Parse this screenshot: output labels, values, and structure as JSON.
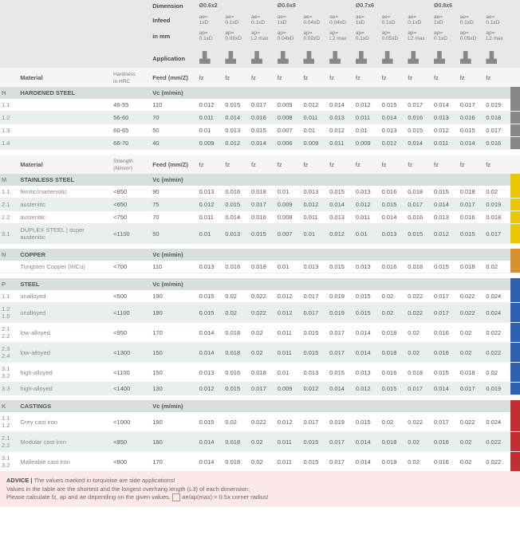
{
  "header": {
    "dim": "Dimension",
    "infeed": "Infeed",
    "inmm": "in mm",
    "app": "Application",
    "sizes": [
      "Ø0.6x2",
      "Ø0.6x8",
      "Ø0.7x6",
      "Ø0.8x6"
    ],
    "ae": [
      "ae=\n1xD",
      "ae=\n0.1xD",
      "ae=\n0.1xD",
      "ae=\n1xD",
      "ae=\n0.04xD",
      "ae=\n0.04xD",
      "ae=\n1xD",
      "ae=\n0.1xD",
      "ae=\n0.1xD",
      "ae=\n1xD",
      "ae=\n0.1xD",
      "ae=\n0.1xD"
    ],
    "ap": [
      "",
      "ap=\n0.05xD",
      "ap=\nL2 max",
      "",
      "ap=\n0.02xD",
      "ap=\nL2 max",
      "",
      "ap=\n0.05xD",
      "ap=\nL2 max",
      "",
      "ap=\n0.05xD",
      "ap=\nL2 max"
    ],
    "ap2": [
      "ap=\n0.1xD",
      "",
      "",
      "ap=\n0.04xD",
      "",
      "",
      "ap=\n0.1xD",
      "",
      "",
      "ap=\n0.1xD",
      "",
      ""
    ],
    "mat": "Material",
    "hard": "Hardness\nin HRC",
    "str": "Strength\n(N/mm²)",
    "feed": "Feed (mm/Z)",
    "fz": "fz",
    "vc": "Vc (m/min)"
  },
  "sections": [
    {
      "key": "H",
      "stripe": "s-h",
      "title": "HARDENED STEEL",
      "hcol": "hard",
      "rows": [
        {
          "c": "1.1",
          "m": "",
          "h": "46-55",
          "vc": "110",
          "v": [
            "0.012",
            "0.015",
            "0.017",
            "0.009",
            "0.012",
            "0.014",
            "0.012",
            "0.015",
            "0.017",
            "0.014",
            "0.017",
            "0.019"
          ]
        },
        {
          "c": "1.2",
          "m": "",
          "h": "56-60",
          "vc": "70",
          "v": [
            "0.011",
            "0.014",
            "0.016",
            "0.008",
            "0.011",
            "0.013",
            "0.011",
            "0.014",
            "0.016",
            "0.013",
            "0.016",
            "0.018"
          ],
          "alt": 1
        },
        {
          "c": "1.3",
          "m": "",
          "h": "60-65",
          "vc": "50",
          "v": [
            "0.01",
            "0.013",
            "0.015",
            "0.007",
            "0.01",
            "0.012",
            "0.01",
            "0.013",
            "0.015",
            "0.012",
            "0.015",
            "0.017"
          ]
        },
        {
          "c": "1.4",
          "m": "",
          "h": "66-70",
          "vc": "40",
          "v": [
            "0.009",
            "0.012",
            "0.014",
            "0.006",
            "0.009",
            "0.011",
            "0.009",
            "0.012",
            "0.014",
            "0.011",
            "0.014",
            "0.016"
          ],
          "alt": 1
        }
      ]
    },
    {
      "key": "M",
      "stripe": "s-m",
      "title": "STAINLESS STEEL",
      "hcol": "str",
      "rows": [
        {
          "c": "1.1",
          "m": "ferritic/martensitic",
          "h": "<850",
          "vc": "90",
          "v": [
            "0.013",
            "0.016",
            "0.018",
            "0.01",
            "0.013",
            "0.015",
            "0.013",
            "0.016",
            "0.018",
            "0.015",
            "0.018",
            "0.02"
          ]
        },
        {
          "c": "2.1",
          "m": "austenitic",
          "h": "<650",
          "vc": "75",
          "v": [
            "0.012",
            "0.015",
            "0.017",
            "0.009",
            "0.012",
            "0.014",
            "0.012",
            "0.015",
            "0.017",
            "0.014",
            "0.017",
            "0.019"
          ],
          "alt": 1
        },
        {
          "c": "2.2",
          "m": "austenitic",
          "h": "<750",
          "vc": "70",
          "v": [
            "0.011",
            "0.014",
            "0.016",
            "0.008",
            "0.011",
            "0.013",
            "0.011",
            "0.014",
            "0.016",
            "0.013",
            "0.016",
            "0.018"
          ]
        },
        {
          "c": "3.1",
          "m": "DUPLEX STEEL | super austenitic",
          "h": "<1100",
          "vc": "50",
          "v": [
            "0.01",
            "0.013",
            "0.015",
            "0.007",
            "0.01",
            "0.012",
            "0.01",
            "0.013",
            "0.015",
            "0.012",
            "0.015",
            "0.017"
          ],
          "alt": 1
        }
      ]
    },
    {
      "key": "N",
      "stripe": "s-n",
      "title": "COPPER",
      "hcol": "",
      "rows": [
        {
          "c": "",
          "m": "Tungsten Copper (WCu)",
          "h": "<700",
          "vc": "110",
          "v": [
            "0.013",
            "0.016",
            "0.018",
            "0.01",
            "0.013",
            "0.015",
            "0.013",
            "0.016",
            "0.018",
            "0.015",
            "0.018",
            "0.02"
          ]
        }
      ]
    },
    {
      "key": "P",
      "stripe": "s-p",
      "title": "STEEL",
      "hcol": "",
      "rows": [
        {
          "c": "1.1",
          "m": "unalloyed",
          "h": "<500",
          "vc": "190",
          "v": [
            "0.015",
            "0.02",
            "0.022",
            "0.012",
            "0.017",
            "0.019",
            "0.015",
            "0.02",
            "0.022",
            "0.017",
            "0.022",
            "0.024"
          ]
        },
        {
          "c": "1.2-1.5",
          "m": "unalloyed",
          "h": "<1100",
          "vc": "180",
          "v": [
            "0.015",
            "0.02",
            "0.022",
            "0.012",
            "0.017",
            "0.019",
            "0.015",
            "0.02",
            "0.022",
            "0.017",
            "0.022",
            "0.024"
          ],
          "alt": 1
        },
        {
          "c": "2.1-2.2",
          "m": "low-alloyed",
          "h": "<950",
          "vc": "170",
          "v": [
            "0.014",
            "0.018",
            "0.02",
            "0.011",
            "0.015",
            "0.017",
            "0.014",
            "0.018",
            "0.02",
            "0.016",
            "0.02",
            "0.022"
          ]
        },
        {
          "c": "2.3-2.4",
          "m": "low-alloyed",
          "h": "<1300",
          "vc": "150",
          "v": [
            "0.014",
            "0.018",
            "0.02",
            "0.011",
            "0.015",
            "0.017",
            "0.014",
            "0.018",
            "0.02",
            "0.016",
            "0.02",
            "0.022"
          ],
          "alt": 1
        },
        {
          "c": "3.1-3.2",
          "m": "high-alloyed",
          "h": "<1100",
          "vc": "150",
          "v": [
            "0.013",
            "0.016",
            "0.018",
            "0.01",
            "0.013",
            "0.015",
            "0.013",
            "0.016",
            "0.018",
            "0.015",
            "0.018",
            "0.02"
          ]
        },
        {
          "c": "3.3",
          "m": "high-alloyed",
          "h": "<1400",
          "vc": "130",
          "v": [
            "0.012",
            "0.015",
            "0.017",
            "0.009",
            "0.012",
            "0.014",
            "0.012",
            "0.015",
            "0.017",
            "0.014",
            "0.017",
            "0.019"
          ],
          "alt": 1
        }
      ]
    },
    {
      "key": "K",
      "stripe": "s-k",
      "title": "CASTINGS",
      "hcol": "",
      "rows": [
        {
          "c": "1.1-1.2",
          "m": "Grey cast iron",
          "h": "<1000",
          "vc": "190",
          "v": [
            "0.015",
            "0.02",
            "0.022",
            "0.012",
            "0.017",
            "0.019",
            "0.015",
            "0.02",
            "0.022",
            "0.017",
            "0.022",
            "0.024"
          ]
        },
        {
          "c": "2.1-2.2",
          "m": "Modular cast iron",
          "h": "<850",
          "vc": "180",
          "v": [
            "0.014",
            "0.018",
            "0.02",
            "0.011",
            "0.015",
            "0.017",
            "0.014",
            "0.018",
            "0.02",
            "0.016",
            "0.02",
            "0.022"
          ],
          "alt": 1
        },
        {
          "c": "3.1-3.2",
          "m": "Malleable cast iron",
          "h": "<800",
          "vc": "170",
          "v": [
            "0.014",
            "0.018",
            "0.02",
            "0.011",
            "0.015",
            "0.017",
            "0.014",
            "0.018",
            "0.02",
            "0.016",
            "0.02",
            "0.022"
          ]
        }
      ]
    }
  ],
  "advice": {
    "t1": "ADVICE  |",
    "t2": "  The values marked in turquoise are side applications!",
    "t3": "Values in the table are the shortest and the longest overhang length (L3) of each dimension;",
    "t4": "Please calculate fz, ap and ae depending on the given values.",
    "t5": "ae/ap(max) = 0.5x corner radius!"
  }
}
